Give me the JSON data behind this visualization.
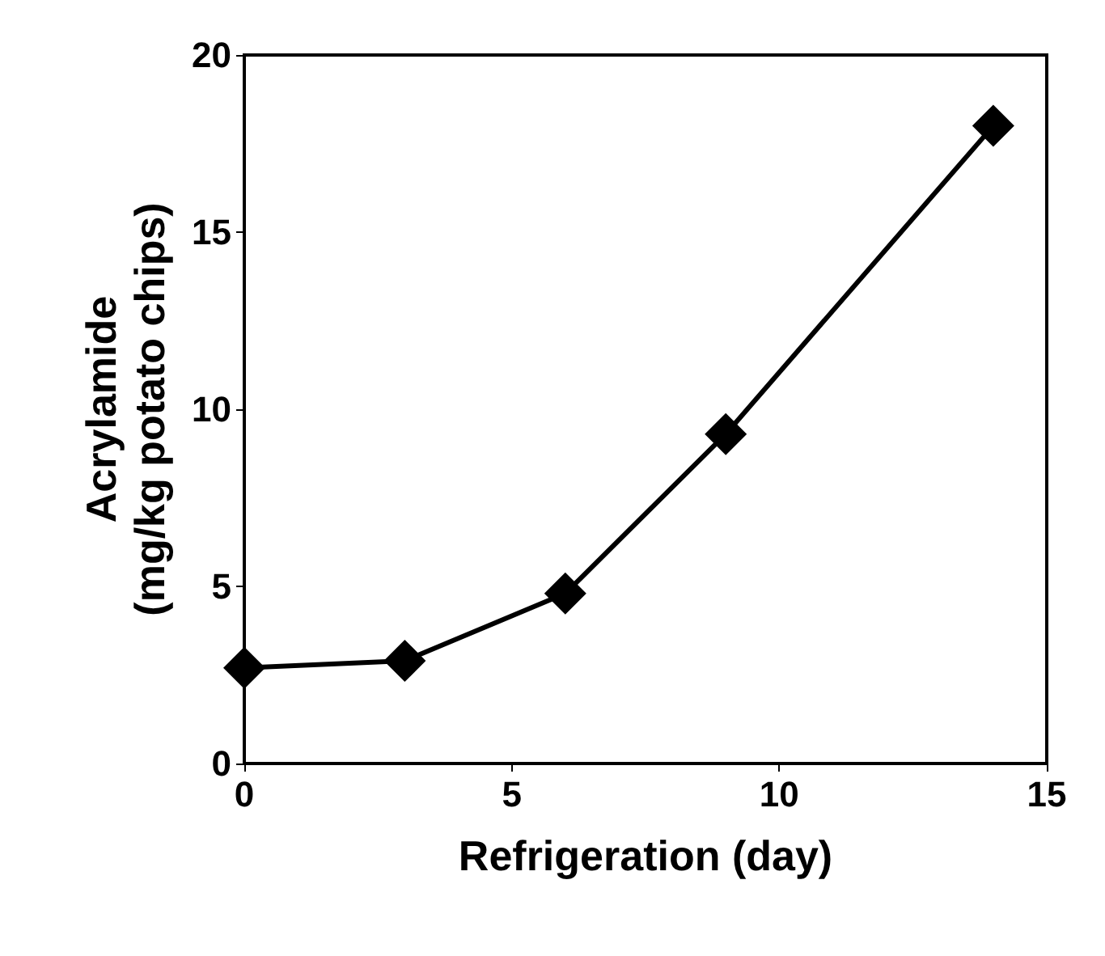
{
  "chart_data": {
    "type": "line",
    "xlabel": "Refrigeration (day)",
    "ylabel": "Acrylamide\n(mg/kg potato chips)",
    "x": [
      0,
      3,
      6,
      9,
      14
    ],
    "series": [
      {
        "color": "#000000",
        "values": [
          2.7,
          2.9,
          4.8,
          9.3,
          18.0
        ]
      }
    ],
    "xlim": [
      0,
      15
    ],
    "xticks": [
      0,
      5,
      10,
      15
    ],
    "ylim": [
      0,
      20
    ],
    "yticks": [
      0,
      5,
      10,
      15,
      20
    ],
    "grid": false,
    "marker": "diamond",
    "line_style": "solid"
  }
}
